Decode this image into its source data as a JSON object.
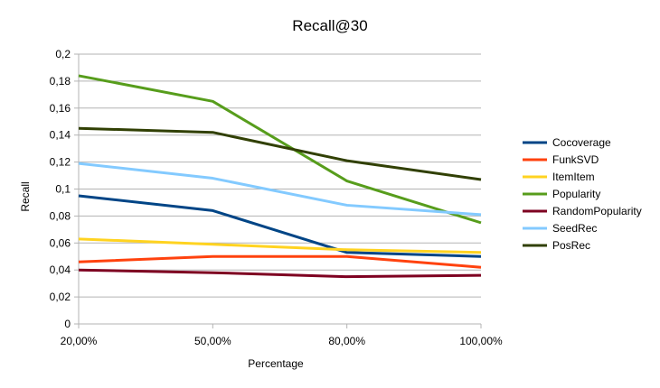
{
  "chart_data": {
    "type": "line",
    "title": "Recall@30",
    "xlabel": "Percentage",
    "ylabel": "Recall",
    "categories": [
      "20,00%",
      "50,00%",
      "80,00%",
      "100,00%"
    ],
    "ylim": [
      0,
      0.2
    ],
    "yticks": [
      "0",
      "0,02",
      "0,04",
      "0,06",
      "0,08",
      "0,1",
      "0,12",
      "0,14",
      "0,16",
      "0,18",
      "0,2"
    ],
    "grid": "horizontal",
    "legend_position": "right",
    "series": [
      {
        "name": "Cocoverage",
        "color": "#004586",
        "values": [
          0.095,
          0.084,
          0.053,
          0.05
        ]
      },
      {
        "name": "FunkSVD",
        "color": "#ff420e",
        "values": [
          0.046,
          0.05,
          0.05,
          0.042
        ]
      },
      {
        "name": "ItemItem",
        "color": "#ffd320",
        "values": [
          0.063,
          0.059,
          0.055,
          0.053
        ]
      },
      {
        "name": "Popularity",
        "color": "#579d1c",
        "values": [
          0.184,
          0.165,
          0.106,
          0.075
        ]
      },
      {
        "name": "RandomPopularity",
        "color": "#7e0021",
        "values": [
          0.04,
          0.038,
          0.035,
          0.036
        ]
      },
      {
        "name": "SeedRec",
        "color": "#83caff",
        "values": [
          0.119,
          0.108,
          0.088,
          0.081
        ]
      },
      {
        "name": "PosRec",
        "color": "#314004",
        "values": [
          0.145,
          0.142,
          0.121,
          0.107
        ]
      }
    ]
  }
}
